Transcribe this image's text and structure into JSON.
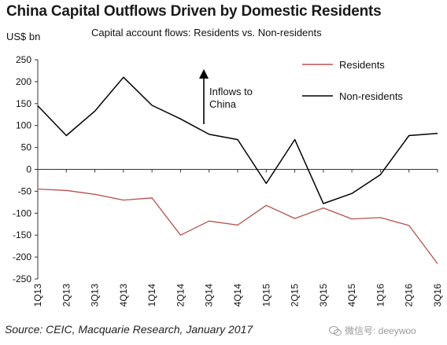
{
  "header": {
    "title": "China Capital Outflows Driven by Domestic Residents",
    "subtitle": "Capital account flows: Residents vs. Non-residents",
    "unit": "US$ bn"
  },
  "footer": {
    "source": "Source: CEIC, Macquarie Research, January 2017",
    "watermark": "微信号: deeywoo"
  },
  "chart_data": {
    "type": "line",
    "title": "China Capital Outflows Driven by Domestic Residents",
    "subtitle": "Capital account flows: Residents vs. Non-residents",
    "ylabel": "US$ bn",
    "xlabel": "",
    "ylim": [
      -250,
      250
    ],
    "yticks": [
      250,
      200,
      150,
      100,
      50,
      0,
      -50,
      -100,
      -150,
      -200,
      -250
    ],
    "grid": false,
    "legend_position": "top-right",
    "categories": [
      "1Q13",
      "2Q13",
      "3Q13",
      "4Q13",
      "1Q14",
      "2Q14",
      "3Q14",
      "4Q14",
      "1Q15",
      "2Q15",
      "3Q15",
      "4Q15",
      "1Q16",
      "2Q16",
      "3Q16"
    ],
    "series": [
      {
        "name": "Residents",
        "color": "#b5524e",
        "values": [
          -45,
          -48,
          -57,
          -70,
          -65,
          -150,
          -118,
          -127,
          -82,
          -112,
          -88,
          -113,
          -110,
          -128,
          -215
        ]
      },
      {
        "name": "Non-residents",
        "color": "#000000",
        "values": [
          145,
          77,
          133,
          210,
          146,
          115,
          80,
          68,
          -32,
          68,
          -78,
          -55,
          -12,
          77,
          82
        ]
      }
    ],
    "annotations": [
      {
        "text_lines": [
          "Inflows to",
          "China"
        ],
        "type": "up-arrow"
      }
    ]
  }
}
